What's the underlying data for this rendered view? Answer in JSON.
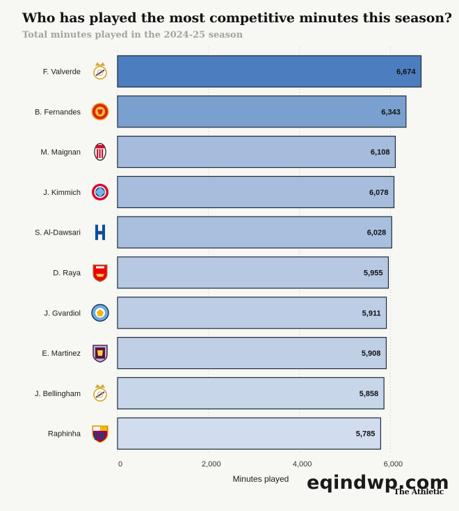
{
  "chart_data": {
    "type": "bar",
    "orientation": "horizontal",
    "title": "Who has played the most competitive minutes this season?",
    "subtitle": "Total minutes played in the 2024-25 season",
    "xlabel": "Minutes played",
    "ylabel": "",
    "xlim": [
      0,
      6700
    ],
    "xticks": [
      "0",
      "2,000",
      "4,000",
      "6,000"
    ],
    "xtick_values": [
      0,
      2000,
      4000,
      6000
    ],
    "grid": "vertical dotted",
    "categories": [
      "F. Valverde",
      "B. Fernandes",
      "M. Maignan",
      "J. Kimmich",
      "S. Al-Dawsari",
      "D. Raya",
      "J. Gvardiol",
      "E. Martinez",
      "J. Bellingham",
      "Raphinha"
    ],
    "values": [
      6674,
      6343,
      6108,
      6078,
      6028,
      5955,
      5911,
      5908,
      5858,
      5785
    ],
    "value_labels": [
      "6,674",
      "6,343",
      "6,108",
      "6,078",
      "6,028",
      "5,955",
      "5,911",
      "5,908",
      "5,858",
      "5,785"
    ],
    "club_icons": [
      "real-madrid-crest-icon",
      "manchester-united-crest-icon",
      "ac-milan-crest-icon",
      "bayern-munich-crest-icon",
      "al-hilal-crest-icon",
      "arsenal-crest-icon",
      "manchester-city-crest-icon",
      "aston-villa-crest-icon",
      "real-madrid-crest-icon",
      "barcelona-crest-icon"
    ],
    "bar_colors": [
      "#4c7ebf",
      "#7aa0cf",
      "#a5bcdd",
      "#a6bddd",
      "#a9bfde",
      "#b6c8e2",
      "#bccde5",
      "#bfcfe6",
      "#c8d6ea",
      "#d1dcee"
    ]
  },
  "source": {
    "watermark": "eqindwp.com",
    "brand": "The Athletic"
  }
}
